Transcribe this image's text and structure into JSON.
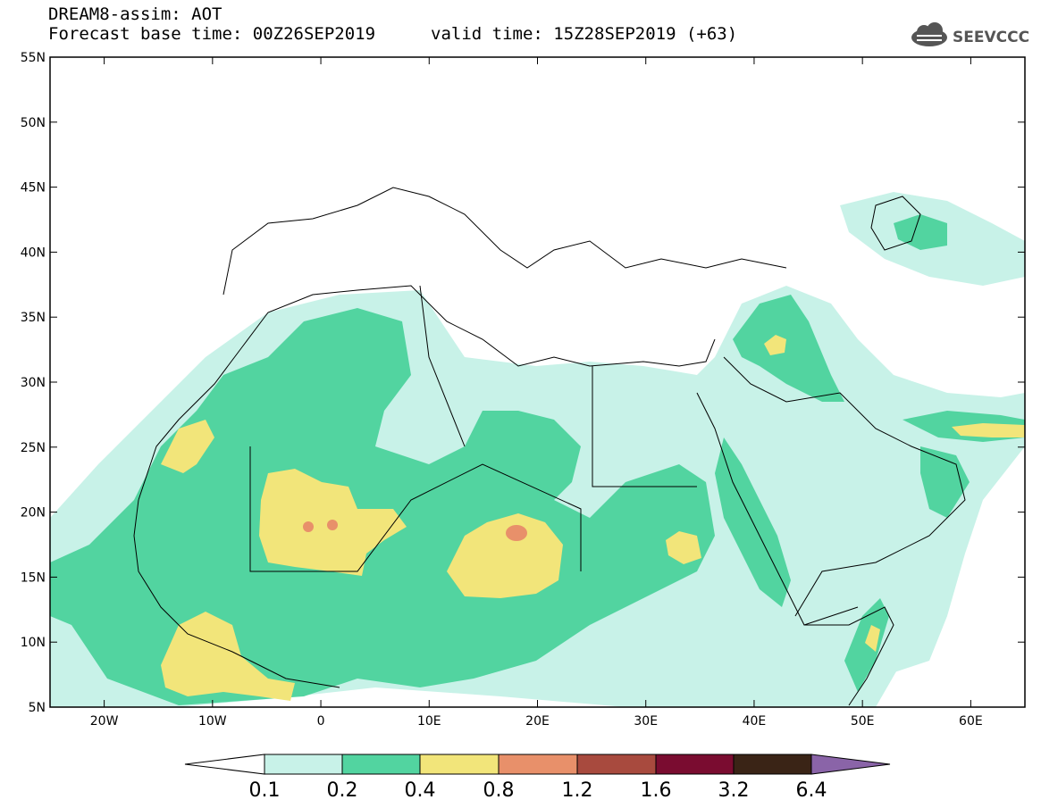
{
  "header": {
    "line1": "DREAM8-assim: AOT",
    "line2": "Forecast base time: 00Z26SEP2019",
    "valid": "valid time: 15Z28SEP2019 (+63)",
    "logo_text": "SEEVCCC"
  },
  "map": {
    "lon_range": [
      -25,
      65
    ],
    "lat_range": [
      5,
      55
    ],
    "lat_ticks": [
      "55N",
      "50N",
      "45N",
      "40N",
      "35N",
      "30N",
      "25N",
      "20N",
      "15N",
      "10N",
      "5N"
    ],
    "lon_ticks": [
      "20W",
      "10W",
      "0",
      "10E",
      "20E",
      "30E",
      "40E",
      "50E",
      "60E"
    ],
    "colors": {
      "c01_02": "#c8f2e8",
      "c02_04": "#52d4a0",
      "c04_08": "#f2e57a",
      "c08_12": "#e8906a",
      "c12_16": "#a84a3e",
      "c16_32": "#7a0c30",
      "c32_64": "#3a2416",
      "c64p": "#8a64a8"
    }
  },
  "colorbar": {
    "labels": [
      "0.1",
      "0.2",
      "0.4",
      "0.8",
      "1.2",
      "1.6",
      "3.2",
      "6.4"
    ]
  }
}
